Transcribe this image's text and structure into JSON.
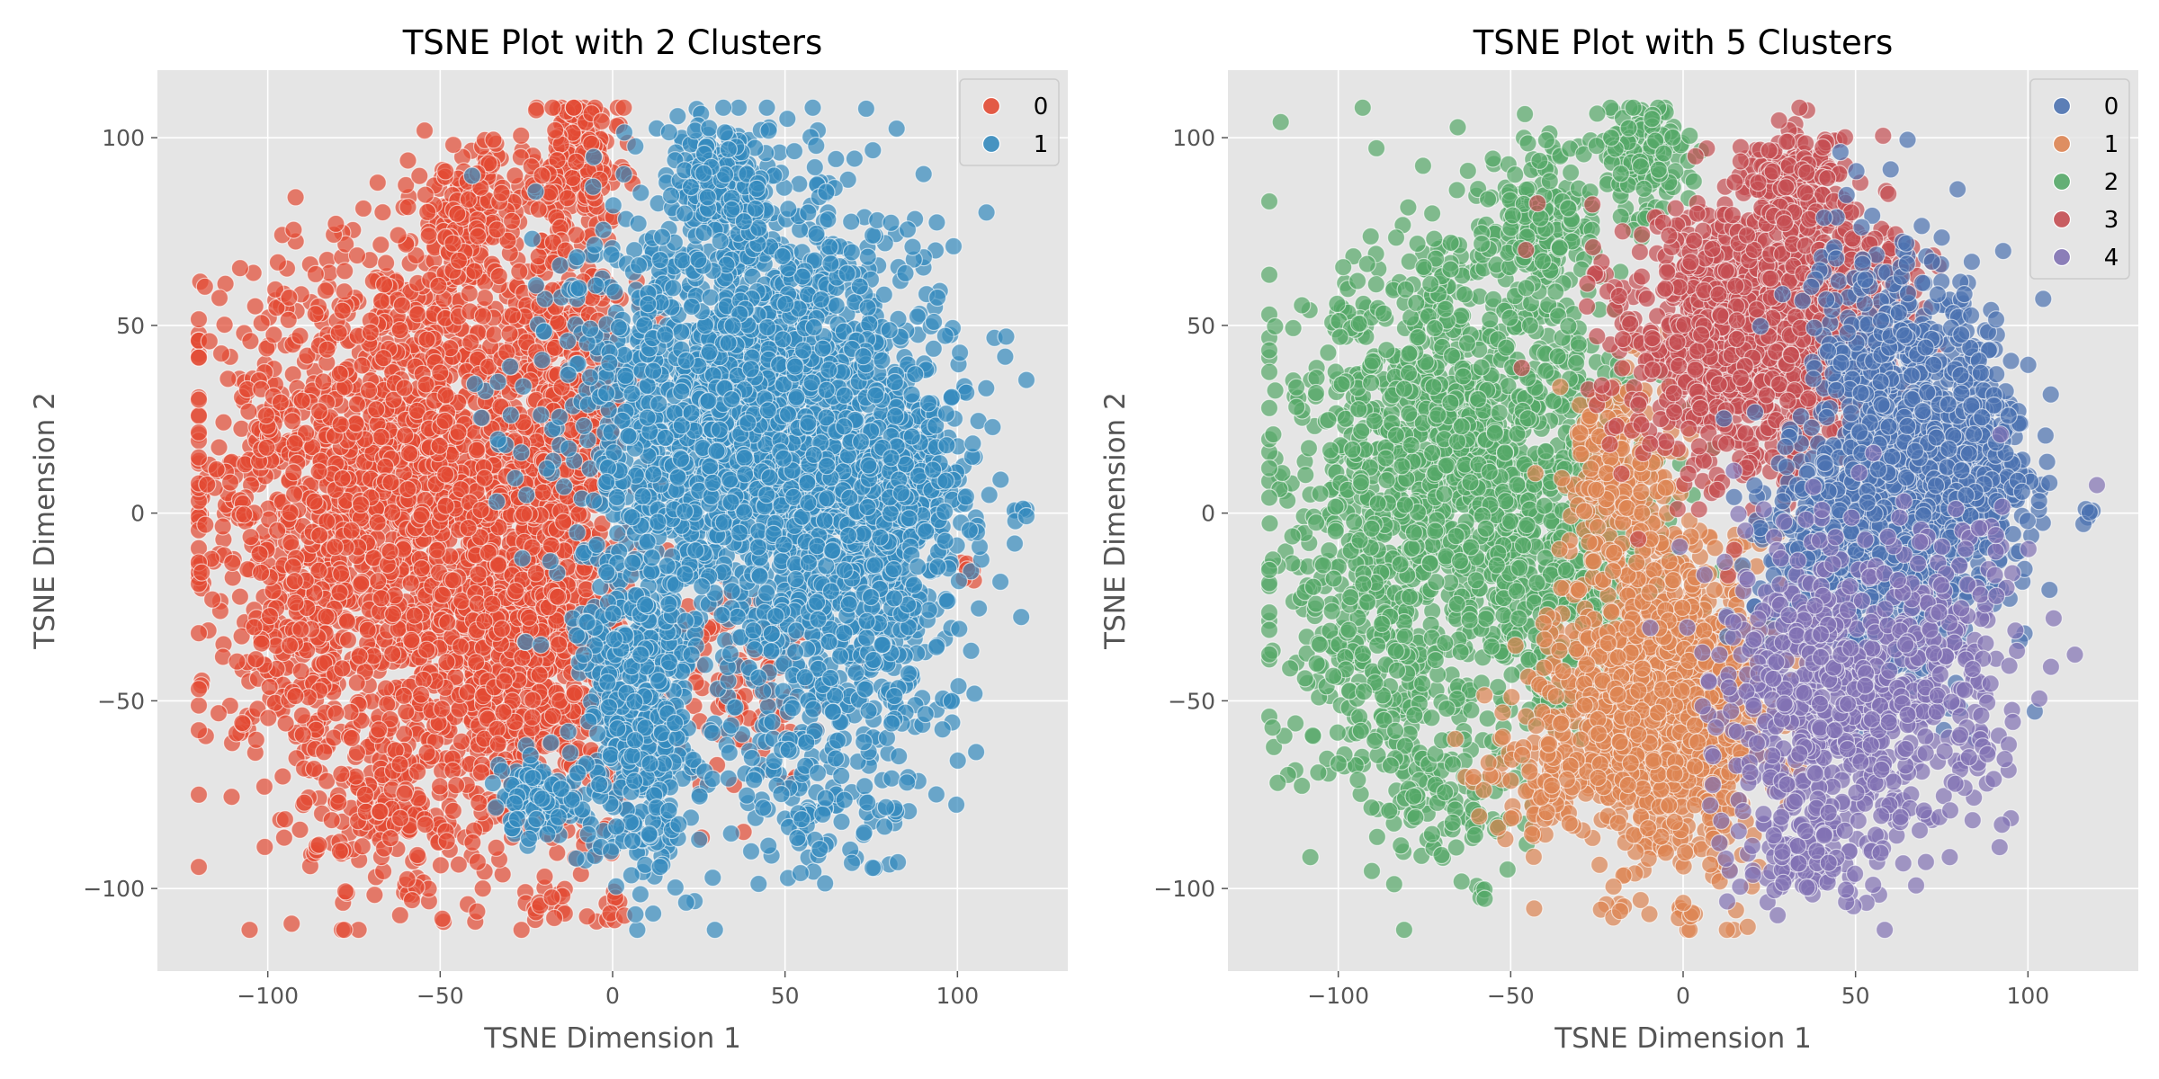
{
  "chart_data": [
    {
      "type": "scatter",
      "title": "TSNE Plot with 2 Clusters",
      "xlabel": "TSNE Dimension 1",
      "ylabel": "TSNE Dimension 2",
      "xlim": [
        -132,
        132
      ],
      "ylim": [
        -122,
        118
      ],
      "xticks": [
        -100,
        -50,
        0,
        50,
        100
      ],
      "yticks": [
        -100,
        -50,
        0,
        50,
        100
      ],
      "xtick_labels": [
        "−100",
        "−50",
        "0",
        "50",
        "100"
      ],
      "ytick_labels": [
        "−100",
        "−50",
        "0",
        "50",
        "100"
      ],
      "grid": true,
      "legend": {
        "position": "upper-right",
        "entries": [
          "0",
          "1"
        ]
      },
      "colors": [
        "#E24A33",
        "#348ABD"
      ],
      "clusters": [
        {
          "label": "0",
          "color": "#E24A33",
          "regions": [
            {
              "cx": -65,
              "cy": 12,
              "sx": 26,
              "sy": 30,
              "n": 1500
            },
            {
              "cx": -28,
              "cy": -40,
              "sx": 18,
              "sy": 26,
              "n": 900
            },
            {
              "cx": -42,
              "cy": 78,
              "sx": 8,
              "sy": 10,
              "n": 180
            },
            {
              "cx": -10,
              "cy": 95,
              "sx": 6,
              "sy": 7,
              "n": 160
            },
            {
              "cx": -15,
              "cy": 30,
              "sx": 10,
              "sy": 30,
              "n": 500
            },
            {
              "cx": -88,
              "cy": -40,
              "sx": 14,
              "sy": 22,
              "n": 250
            },
            {
              "cx": -65,
              "cy": -80,
              "sx": 10,
              "sy": 12,
              "n": 120
            },
            {
              "cx": 40,
              "cy": -45,
              "sx": 10,
              "sy": 15,
              "n": 110
            },
            {
              "cx": -20,
              "cy": -105,
              "sx": 3,
              "sy": 3,
              "n": 12
            },
            {
              "cx": 1,
              "cy": -105,
              "sx": 2,
              "sy": 2,
              "n": 8
            },
            {
              "cx": -58,
              "cy": -101,
              "sx": 2,
              "sy": 2,
              "n": 6
            },
            {
              "cx": 103,
              "cy": -16,
              "sx": 2,
              "sy": 2,
              "n": 6
            },
            {
              "cx": -120,
              "cy": -15,
              "sx": 2,
              "sy": 2,
              "n": 6
            }
          ]
        },
        {
          "label": "1",
          "color": "#348ABD",
          "regions": [
            {
              "cx": 40,
              "cy": 25,
              "sx": 25,
              "sy": 30,
              "n": 2200
            },
            {
              "cx": 32,
              "cy": 88,
              "sx": 8,
              "sy": 8,
              "n": 200
            },
            {
              "cx": 8,
              "cy": -55,
              "sx": 8,
              "sy": 20,
              "n": 500
            },
            {
              "cx": 70,
              "cy": -30,
              "sx": 15,
              "sy": 20,
              "n": 350
            },
            {
              "cx": 85,
              "cy": 10,
              "sx": 10,
              "sy": 15,
              "n": 300
            },
            {
              "cx": -20,
              "cy": -75,
              "sx": 8,
              "sy": 6,
              "n": 120
            },
            {
              "cx": 60,
              "cy": -75,
              "sx": 15,
              "sy": 12,
              "n": 130
            },
            {
              "cx": 118,
              "cy": 0,
              "sx": 1.5,
              "sy": 1.5,
              "n": 6
            }
          ]
        }
      ]
    },
    {
      "type": "scatter",
      "title": "TSNE Plot with 5 Clusters",
      "xlabel": "TSNE Dimension 1",
      "ylabel": "TSNE Dimension 2",
      "xlim": [
        -132,
        132
      ],
      "ylim": [
        -122,
        118
      ],
      "xticks": [
        -100,
        -50,
        0,
        50,
        100
      ],
      "yticks": [
        -100,
        -50,
        0,
        50,
        100
      ],
      "xtick_labels": [
        "−100",
        "−50",
        "0",
        "50",
        "100"
      ],
      "ytick_labels": [
        "−100",
        "−50",
        "0",
        "50",
        "100"
      ],
      "grid": true,
      "legend": {
        "position": "upper-right",
        "entries": [
          "0",
          "1",
          "2",
          "3",
          "4"
        ]
      },
      "colors": [
        "#4C72B0",
        "#DD8452",
        "#55A868",
        "#C44E52",
        "#8172B3"
      ],
      "clusters": [
        {
          "label": "2",
          "color": "#55A868",
          "regions": [
            {
              "cx": -65,
              "cy": 15,
              "sx": 24,
              "sy": 28,
              "n": 1300
            },
            {
              "cx": -42,
              "cy": 78,
              "sx": 8,
              "sy": 10,
              "n": 180
            },
            {
              "cx": -12,
              "cy": 95,
              "sx": 6,
              "sy": 7,
              "n": 160
            },
            {
              "cx": -88,
              "cy": -40,
              "sx": 14,
              "sy": 22,
              "n": 250
            },
            {
              "cx": -30,
              "cy": -25,
              "sx": 14,
              "sy": 14,
              "n": 300
            },
            {
              "cx": -70,
              "cy": -75,
              "sx": 10,
              "sy": 10,
              "n": 100
            },
            {
              "cx": -58,
              "cy": -101,
              "sx": 2,
              "sy": 2,
              "n": 6
            },
            {
              "cx": -120,
              "cy": -15,
              "sx": 2,
              "sy": 2,
              "n": 6
            }
          ]
        },
        {
          "label": "1",
          "color": "#DD8452",
          "regions": [
            {
              "cx": -5,
              "cy": -50,
              "sx": 15,
              "sy": 20,
              "n": 1300
            },
            {
              "cx": -20,
              "cy": 10,
              "sx": 8,
              "sy": 14,
              "n": 200
            },
            {
              "cx": -40,
              "cy": -70,
              "sx": 10,
              "sy": 8,
              "n": 100
            },
            {
              "cx": 0,
              "cy": -105,
              "sx": 3,
              "sy": 2,
              "n": 8
            },
            {
              "cx": -20,
              "cy": -105,
              "sx": 2,
              "sy": 2,
              "n": 6
            }
          ]
        },
        {
          "label": "3",
          "color": "#C44E52",
          "regions": [
            {
              "cx": 20,
              "cy": 45,
              "sx": 18,
              "sy": 18,
              "n": 1200
            },
            {
              "cx": 32,
              "cy": 88,
              "sx": 8,
              "sy": 7,
              "n": 220
            },
            {
              "cx": 50,
              "cy": 60,
              "sx": 10,
              "sy": 10,
              "n": 200
            }
          ]
        },
        {
          "label": "0",
          "color": "#4C72B0",
          "regions": [
            {
              "cx": 65,
              "cy": 15,
              "sx": 15,
              "sy": 25,
              "n": 1200
            },
            {
              "cx": 45,
              "cy": -15,
              "sx": 12,
              "sy": 12,
              "n": 300
            },
            {
              "cx": 85,
              "cy": 10,
              "sx": 8,
              "sy": 12,
              "n": 200
            },
            {
              "cx": 118,
              "cy": 0,
              "sx": 1.5,
              "sy": 1.5,
              "n": 6
            }
          ]
        },
        {
          "label": "4",
          "color": "#8172B3",
          "regions": [
            {
              "cx": 45,
              "cy": -50,
              "sx": 18,
              "sy": 22,
              "n": 700
            },
            {
              "cx": 80,
              "cy": -40,
              "sx": 12,
              "sy": 20,
              "n": 150
            },
            {
              "cx": 35,
              "cy": -95,
              "sx": 10,
              "sy": 5,
              "n": 60
            }
          ]
        }
      ]
    }
  ]
}
